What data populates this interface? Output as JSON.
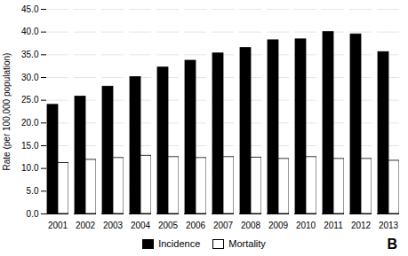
{
  "chart_data": {
    "type": "bar",
    "categories": [
      "2001",
      "2002",
      "2003",
      "2004",
      "2005",
      "2006",
      "2007",
      "2008",
      "2009",
      "2010",
      "2011",
      "2012",
      "2013"
    ],
    "series": [
      {
        "name": "Incidence",
        "color": "#000000",
        "values": [
          24.0,
          25.8,
          28.0,
          30.1,
          32.2,
          33.7,
          35.3,
          36.5,
          38.2,
          38.4,
          40.0,
          39.5,
          35.6
        ]
      },
      {
        "name": "Mortality",
        "color": "#ffffff",
        "values": [
          11.2,
          11.9,
          12.3,
          12.8,
          12.5,
          12.3,
          12.5,
          12.4,
          12.1,
          12.5,
          12.1,
          12.1,
          11.7
        ]
      }
    ],
    "ylabel": "Rate (per 100,000 population)",
    "ylim": [
      0,
      45
    ],
    "yticks": [
      {
        "value": 0,
        "label": "0.0"
      },
      {
        "value": 5,
        "label": "5.0"
      },
      {
        "value": 10,
        "label": "10.0"
      },
      {
        "value": 15,
        "label": "15.0"
      },
      {
        "value": 20,
        "label": "20.0"
      },
      {
        "value": 25,
        "label": "25.0"
      },
      {
        "value": 30,
        "label": "30.0"
      },
      {
        "value": 35,
        "label": "35.0"
      },
      {
        "value": 40,
        "label": "40.0"
      },
      {
        "value": 45,
        "label": "45.0"
      }
    ],
    "grid": true,
    "legend": "bottom",
    "annotation": "B"
  }
}
